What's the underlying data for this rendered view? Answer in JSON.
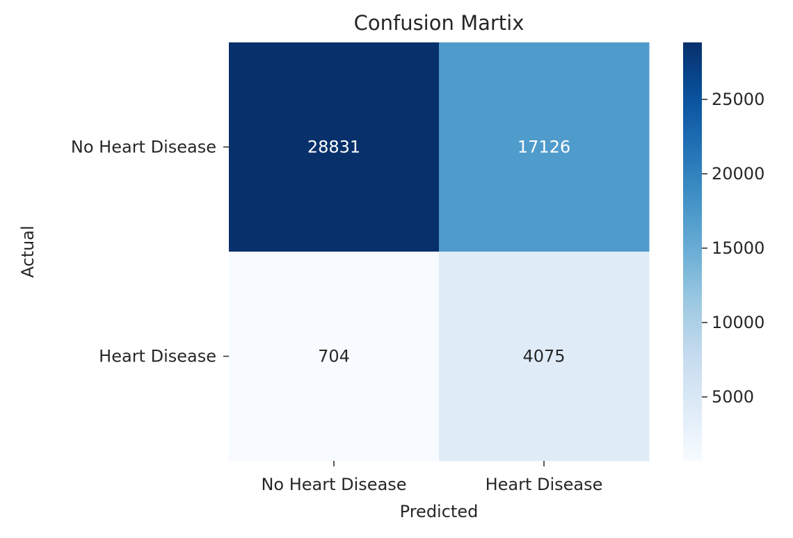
{
  "chart_data": {
    "type": "heatmap",
    "title": "Confusion Martix",
    "xlabel": "Predicted",
    "ylabel": "Actual",
    "x_categories": [
      "No Heart Disease",
      "Heart Disease"
    ],
    "y_categories": [
      "No Heart Disease",
      "Heart Disease"
    ],
    "values": [
      [
        28831,
        17126
      ],
      [
        704,
        4075
      ]
    ],
    "colormap": "Blues",
    "colorbar": {
      "min": 704,
      "max": 28831,
      "ticks": [
        5000,
        10000,
        15000,
        20000,
        25000
      ]
    },
    "colors": {
      "low": "#f7fbff",
      "high": "#08306b",
      "text_dark": "#262626",
      "text_light": "#ffffff"
    }
  }
}
